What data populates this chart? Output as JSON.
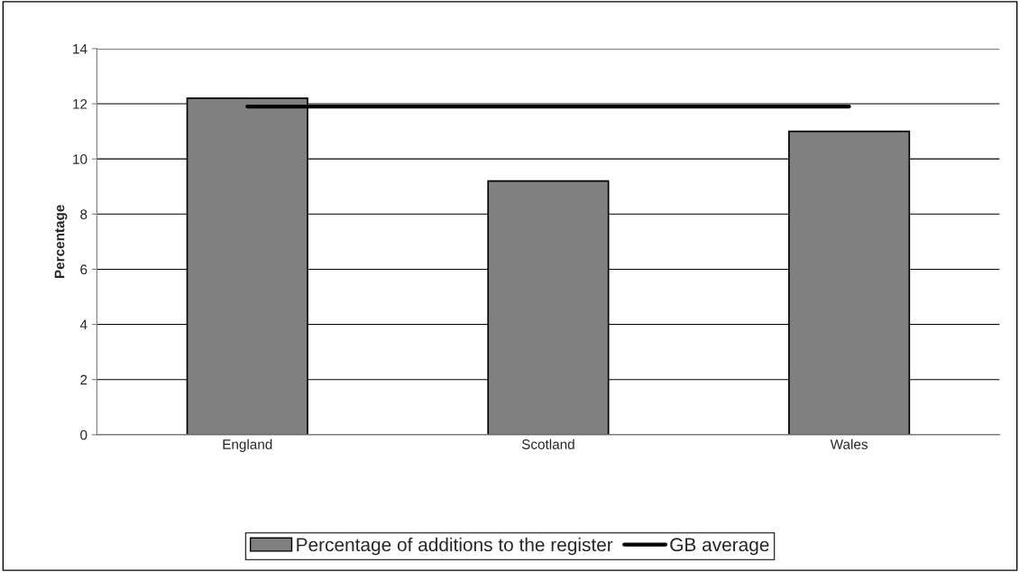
{
  "chart_data": {
    "type": "bar",
    "ylabel": "Percentage",
    "categories": [
      "England",
      "Scotland",
      "Wales"
    ],
    "series": [
      {
        "name": "Percentage of additions to the register",
        "color": "#808080",
        "values": [
          12.2,
          9.2,
          11.0
        ]
      },
      {
        "name": "GB average",
        "type": "line",
        "color": "#000000",
        "values": [
          11.9,
          11.9,
          11.9
        ]
      }
    ],
    "ylim": [
      0,
      14
    ],
    "yticks": [
      0,
      2,
      4,
      6,
      8,
      10,
      12,
      14
    ],
    "grid": "y",
    "legend": "bottom"
  }
}
